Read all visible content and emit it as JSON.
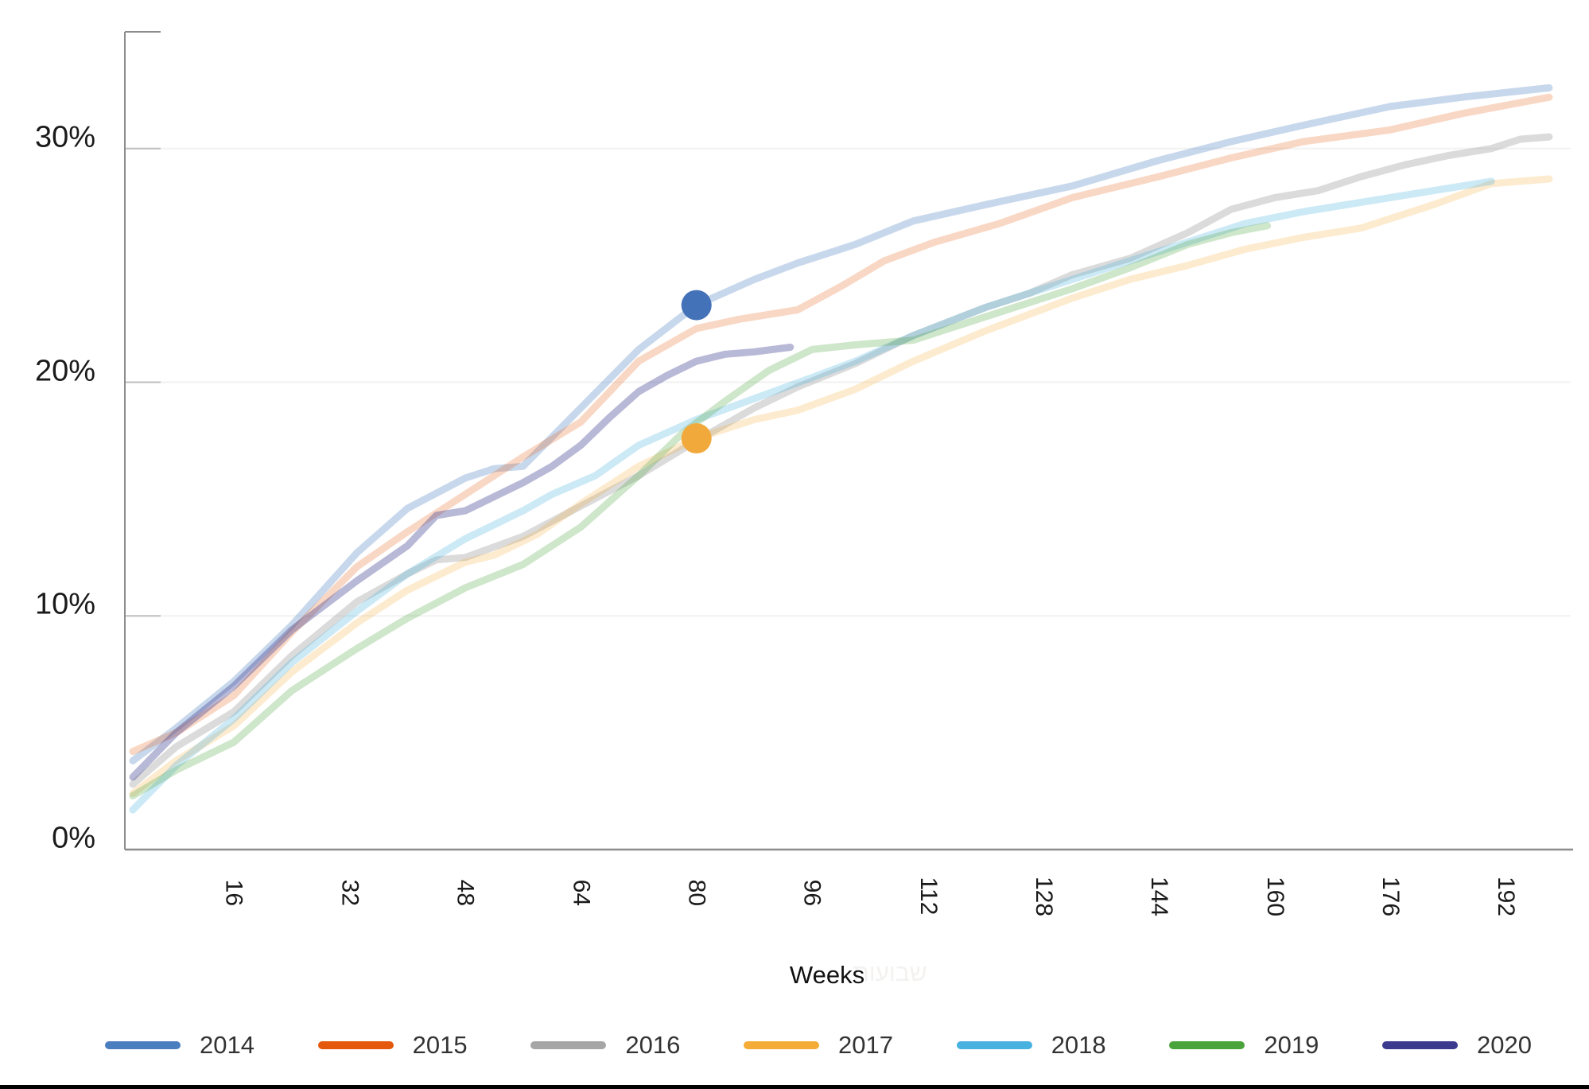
{
  "chart_data": {
    "type": "line",
    "title": "",
    "xlabel": "Weeks",
    "ylabel": "",
    "xlim": [
      0,
      201
    ],
    "ylim": [
      0,
      35
    ],
    "grid": "horizontal",
    "legend_position": "bottom",
    "x_tick_values": [
      16,
      32,
      48,
      64,
      80,
      96,
      112,
      128,
      144,
      160,
      176,
      192
    ],
    "y_tick_values": [
      0,
      10,
      20,
      30
    ],
    "y_tick_labels": [
      "0%",
      "10%",
      "20%",
      "30%"
    ],
    "series": [
      {
        "name": "2014",
        "color": "#4a7ebf",
        "opacity": 0.3,
        "points": [
          [
            2,
            3.8
          ],
          [
            8,
            5.2
          ],
          [
            16,
            7.2
          ],
          [
            24,
            9.6
          ],
          [
            33,
            12.7
          ],
          [
            40,
            14.6
          ],
          [
            48,
            15.9
          ],
          [
            52,
            16.3
          ],
          [
            56,
            16.4
          ],
          [
            64,
            18.9
          ],
          [
            72,
            21.4
          ],
          [
            80,
            23.3
          ],
          [
            88,
            24.4
          ],
          [
            94,
            25.1
          ],
          [
            102,
            25.9
          ],
          [
            110,
            26.9
          ],
          [
            120,
            27.6
          ],
          [
            132,
            28.4
          ],
          [
            144,
            29.5
          ],
          [
            154,
            30.3
          ],
          [
            164,
            31.0
          ],
          [
            176,
            31.8
          ],
          [
            186,
            32.2
          ],
          [
            198,
            32.6
          ]
        ]
      },
      {
        "name": "2015",
        "color": "#e4590e",
        "opacity": 0.24,
        "points": [
          [
            2,
            4.2
          ],
          [
            8,
            5.0
          ],
          [
            16,
            6.6
          ],
          [
            24,
            9.3
          ],
          [
            33,
            12.1
          ],
          [
            40,
            13.6
          ],
          [
            48,
            15.2
          ],
          [
            56,
            16.8
          ],
          [
            64,
            18.3
          ],
          [
            72,
            20.9
          ],
          [
            76,
            21.6
          ],
          [
            80,
            22.3
          ],
          [
            86,
            22.7
          ],
          [
            94,
            23.1
          ],
          [
            100,
            24.1
          ],
          [
            106,
            25.2
          ],
          [
            113,
            26.0
          ],
          [
            122,
            26.8
          ],
          [
            132,
            27.9
          ],
          [
            144,
            28.8
          ],
          [
            154,
            29.6
          ],
          [
            164,
            30.3
          ],
          [
            176,
            30.8
          ],
          [
            186,
            31.5
          ],
          [
            198,
            32.2
          ]
        ]
      },
      {
        "name": "2016",
        "color": "#a6a6a6",
        "opacity": 0.4,
        "points": [
          [
            2,
            2.8
          ],
          [
            8,
            4.4
          ],
          [
            16,
            5.9
          ],
          [
            24,
            8.3
          ],
          [
            33,
            10.6
          ],
          [
            40,
            11.8
          ],
          [
            44,
            12.4
          ],
          [
            48,
            12.5
          ],
          [
            56,
            13.4
          ],
          [
            64,
            14.7
          ],
          [
            72,
            16.0
          ],
          [
            80,
            17.5
          ],
          [
            88,
            18.9
          ],
          [
            94,
            19.8
          ],
          [
            102,
            20.8
          ],
          [
            110,
            22.0
          ],
          [
            120,
            23.2
          ],
          [
            126,
            23.8
          ],
          [
            132,
            24.6
          ],
          [
            140,
            25.3
          ],
          [
            148,
            26.4
          ],
          [
            154,
            27.4
          ],
          [
            160,
            27.9
          ],
          [
            166,
            28.2
          ],
          [
            172,
            28.8
          ],
          [
            178,
            29.3
          ],
          [
            184,
            29.7
          ],
          [
            190,
            30.0
          ],
          [
            194,
            30.4
          ],
          [
            198,
            30.5
          ]
        ]
      },
      {
        "name": "2017",
        "color": "#f5ac37",
        "opacity": 0.24,
        "points": [
          [
            2,
            2.4
          ],
          [
            8,
            3.8
          ],
          [
            16,
            5.3
          ],
          [
            24,
            7.6
          ],
          [
            33,
            9.7
          ],
          [
            40,
            11.1
          ],
          [
            48,
            12.3
          ],
          [
            52,
            12.6
          ],
          [
            58,
            13.5
          ],
          [
            64,
            14.8
          ],
          [
            72,
            16.4
          ],
          [
            80,
            17.6
          ],
          [
            88,
            18.4
          ],
          [
            94,
            18.8
          ],
          [
            102,
            19.7
          ],
          [
            110,
            20.9
          ],
          [
            120,
            22.2
          ],
          [
            132,
            23.6
          ],
          [
            140,
            24.4
          ],
          [
            148,
            25.0
          ],
          [
            156,
            25.7
          ],
          [
            164,
            26.2
          ],
          [
            172,
            26.6
          ],
          [
            182,
            27.6
          ],
          [
            190,
            28.5
          ],
          [
            198,
            28.7
          ]
        ]
      },
      {
        "name": "2018",
        "color": "#47b1e0",
        "opacity": 0.28,
        "points": [
          [
            2,
            1.7
          ],
          [
            8,
            3.6
          ],
          [
            16,
            5.6
          ],
          [
            24,
            8.0
          ],
          [
            33,
            10.2
          ],
          [
            40,
            11.8
          ],
          [
            48,
            13.3
          ],
          [
            56,
            14.5
          ],
          [
            60,
            15.2
          ],
          [
            66,
            16.0
          ],
          [
            72,
            17.3
          ],
          [
            80,
            18.4
          ],
          [
            88,
            19.3
          ],
          [
            96,
            20.2
          ],
          [
            102,
            20.9
          ],
          [
            110,
            22.0
          ],
          [
            120,
            23.2
          ],
          [
            132,
            24.4
          ],
          [
            140,
            25.2
          ],
          [
            148,
            26.0
          ],
          [
            156,
            26.8
          ],
          [
            164,
            27.3
          ],
          [
            172,
            27.7
          ],
          [
            180,
            28.1
          ],
          [
            190,
            28.6
          ]
        ]
      },
      {
        "name": "2019",
        "color": "#4ba43b",
        "opacity": 0.27,
        "points": [
          [
            2,
            2.3
          ],
          [
            8,
            3.4
          ],
          [
            16,
            4.6
          ],
          [
            24,
            6.8
          ],
          [
            33,
            8.6
          ],
          [
            40,
            9.9
          ],
          [
            48,
            11.2
          ],
          [
            56,
            12.2
          ],
          [
            64,
            13.8
          ],
          [
            72,
            16.0
          ],
          [
            78,
            17.8
          ],
          [
            84,
            19.2
          ],
          [
            90,
            20.5
          ],
          [
            96,
            21.4
          ],
          [
            102,
            21.6
          ],
          [
            110,
            21.8
          ],
          [
            118,
            22.6
          ],
          [
            126,
            23.4
          ],
          [
            132,
            24.0
          ],
          [
            140,
            24.9
          ],
          [
            148,
            25.9
          ],
          [
            154,
            26.4
          ],
          [
            159,
            26.7
          ]
        ]
      },
      {
        "name": "2020",
        "color": "#3b3a8f",
        "opacity": 0.36,
        "points": [
          [
            2,
            3.1
          ],
          [
            8,
            5.0
          ],
          [
            16,
            7.0
          ],
          [
            24,
            9.4
          ],
          [
            33,
            11.5
          ],
          [
            40,
            13.0
          ],
          [
            44,
            14.3
          ],
          [
            48,
            14.5
          ],
          [
            56,
            15.7
          ],
          [
            60,
            16.4
          ],
          [
            64,
            17.3
          ],
          [
            68,
            18.5
          ],
          [
            72,
            19.6
          ],
          [
            76,
            20.3
          ],
          [
            80,
            20.9
          ],
          [
            84,
            21.2
          ],
          [
            88,
            21.3
          ],
          [
            93,
            21.5
          ]
        ]
      }
    ],
    "markers": [
      {
        "series": "2014",
        "week": 80,
        "value": 23.3,
        "color": "#4472b8",
        "radius": 19
      },
      {
        "series": "2017",
        "week": 80,
        "value": 17.6,
        "color": "#f2a93c",
        "radius": 19
      }
    ]
  },
  "figure": {
    "xaxis_title": "Weeks",
    "watermark": "שבועות"
  },
  "style_colors": {
    "axis_line": "#8c8c8c",
    "tick_mark": "#bfbfbf",
    "gridline": "#f2f2f2"
  }
}
